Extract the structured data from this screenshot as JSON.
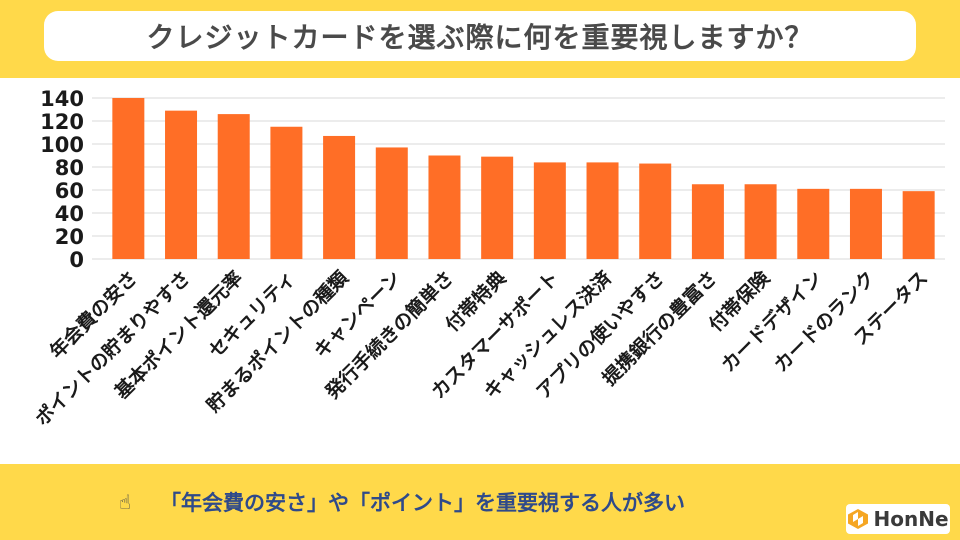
{
  "title": "クレジットカードを選ぶ際に何を重要視しますか？",
  "caption": "「年会費の安さ」や「ポイント」を重要視する人が多い",
  "logo_text": "HonNe",
  "hand_icon": "pointing-hand-icon",
  "colors": {
    "background": "#FFD94A",
    "bar": "#FF6E26",
    "caption_text": "#2F4A8A",
    "title_text": "#4A4A4A"
  },
  "chart_data": {
    "type": "bar",
    "title": "",
    "xlabel": "",
    "ylabel": "",
    "ylim": [
      0,
      140
    ],
    "yticks": [
      0,
      20,
      40,
      60,
      80,
      100,
      120,
      140
    ],
    "grid": true,
    "categories": [
      "年会費の安さ",
      "ポイントの貯まりやすさ",
      "基本ポイント還元率",
      "セキュリティ",
      "貯まるポイントの種類",
      "キャンペーン",
      "発行手続きの簡単さ",
      "付帯特典",
      "カスタマーサポート",
      "キャッシュレス決済",
      "アプリの使いやすさ",
      "提携銀行の豊富さ",
      "付帯保険",
      "カードデザイン",
      "カードのランク",
      "ステータス"
    ],
    "values": [
      140,
      129,
      126,
      115,
      107,
      97,
      90,
      89,
      84,
      84,
      83,
      65,
      65,
      61,
      61,
      59
    ]
  }
}
